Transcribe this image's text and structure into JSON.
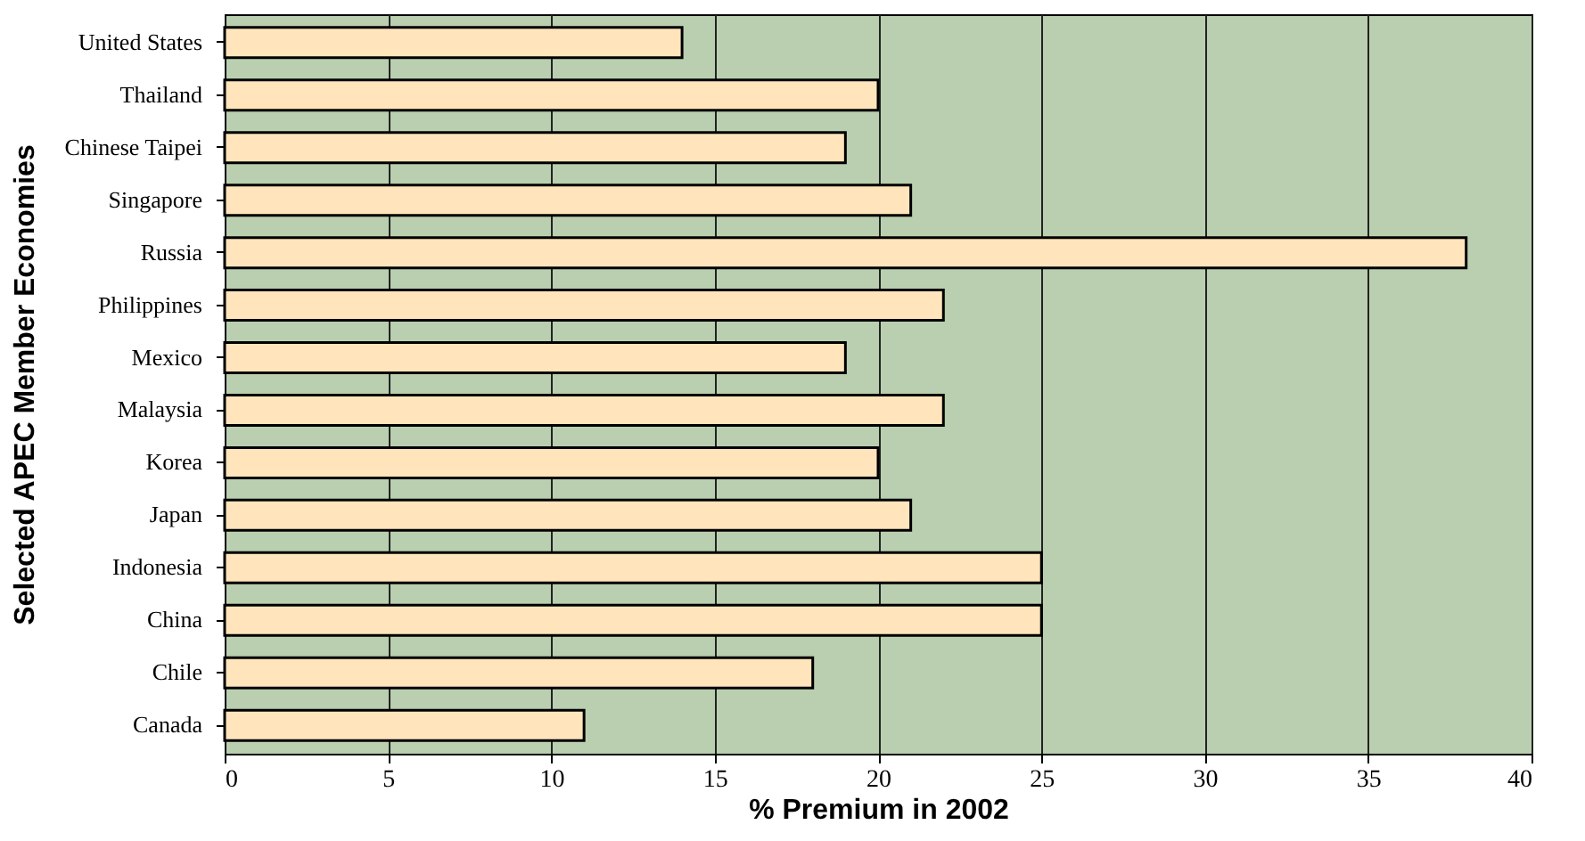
{
  "chart_data": {
    "type": "bar",
    "orientation": "horizontal",
    "xlabel": "% Premium in 2002",
    "ylabel": "Selected APEC Member Economies",
    "categories": [
      "United States",
      "Thailand",
      "Chinese Taipei",
      "Singapore",
      "Russia",
      "Philippines",
      "Mexico",
      "Malaysia",
      "Korea",
      "Japan",
      "Indonesia",
      "China",
      "Chile",
      "Canada"
    ],
    "values": [
      14,
      20,
      19,
      21,
      38,
      22,
      19,
      22,
      20,
      21,
      25,
      25,
      18,
      11
    ],
    "color": "#ffe4bc",
    "xlim": [
      0,
      40
    ],
    "xticks": [
      0,
      5,
      10,
      15,
      20,
      25,
      30,
      35,
      40
    ],
    "grid": "x"
  }
}
